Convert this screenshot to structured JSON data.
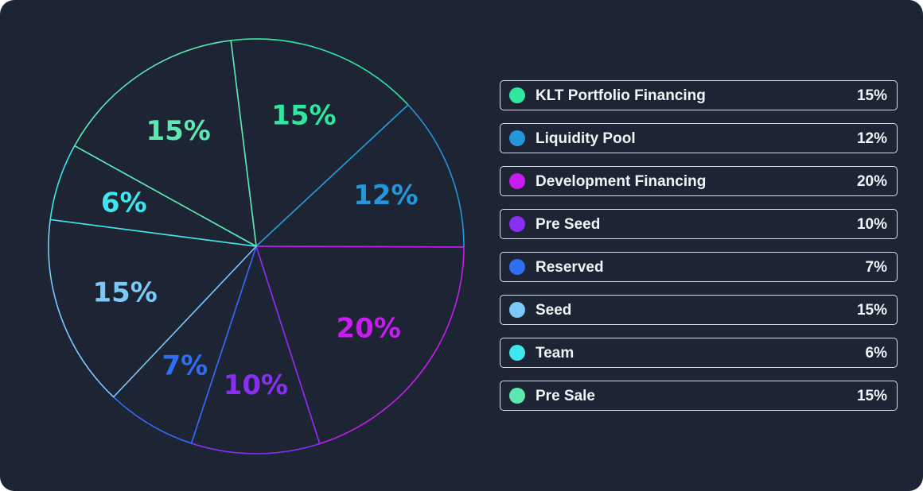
{
  "chart_data": {
    "type": "pie",
    "title": "",
    "slices": [
      {
        "label": "KLT Portfolio Financing",
        "value": 15,
        "display": "15%",
        "color": "#2ee8a0"
      },
      {
        "label": "Liquidity Pool",
        "value": 12,
        "display": "12%",
        "color": "#2596d9"
      },
      {
        "label": "Development Financing",
        "value": 20,
        "display": "20%",
        "color": "#c81cf2"
      },
      {
        "label": "Pre Seed",
        "value": 10,
        "display": "10%",
        "color": "#8a2ef5"
      },
      {
        "label": "Reserved",
        "value": 7,
        "display": "7%",
        "color": "#2f6df5"
      },
      {
        "label": "Seed",
        "value": 15,
        "display": "15%",
        "color": "#7cc8f7"
      },
      {
        "label": "Team",
        "value": 6,
        "display": "6%",
        "color": "#3ee6ef"
      },
      {
        "label": "Pre Sale",
        "value": 15,
        "display": "15%",
        "color": "#5de8b0"
      }
    ],
    "legend_position": "right"
  }
}
